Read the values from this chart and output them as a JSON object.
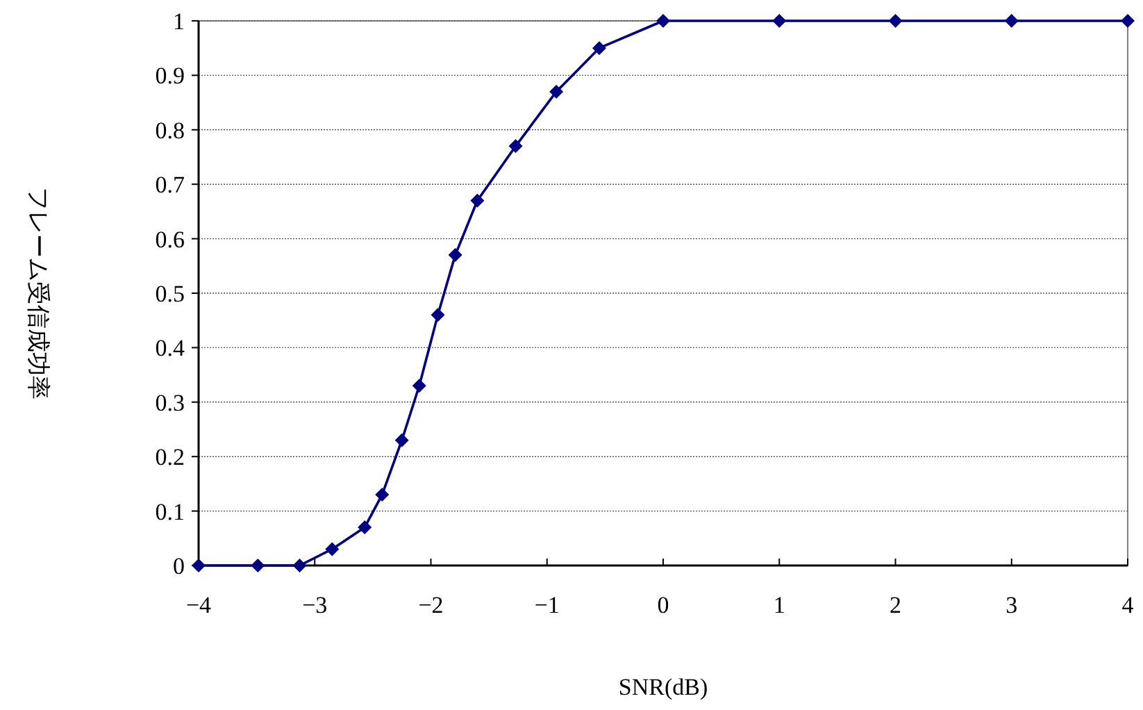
{
  "chart_data": {
    "type": "line",
    "xlabel": "SNR(dB)",
    "ylabel": "フレーム受信成功率",
    "x": [
      -4,
      -3.49,
      -3.13,
      -2.85,
      -2.57,
      -2.42,
      -2.25,
      -2.1,
      -1.94,
      -1.79,
      -1.6,
      -1.27,
      -0.92,
      -0.55,
      0,
      1,
      2,
      3,
      4
    ],
    "series": [
      {
        "color": "#000080",
        "values": [
          0,
          0,
          0,
          0.03,
          0.07,
          0.13,
          0.23,
          0.33,
          0.46,
          0.57,
          0.67,
          0.77,
          0.87,
          0.95,
          1,
          1,
          1,
          1,
          1
        ]
      }
    ],
    "xlim": [
      -4,
      4
    ],
    "xticks": [
      {
        "value": -4,
        "label": "−4"
      },
      {
        "value": -3,
        "label": "−3"
      },
      {
        "value": -2,
        "label": "−2"
      },
      {
        "value": -1,
        "label": "−1"
      },
      0,
      1,
      2,
      3,
      4
    ],
    "ylim": [
      0,
      1
    ],
    "yticks": [
      0,
      0.1,
      0.2,
      0.3,
      0.4,
      0.5,
      0.6,
      0.7,
      0.8,
      0.9,
      1
    ],
    "grid": "y",
    "marker": "diamond",
    "line_style": "solid"
  }
}
